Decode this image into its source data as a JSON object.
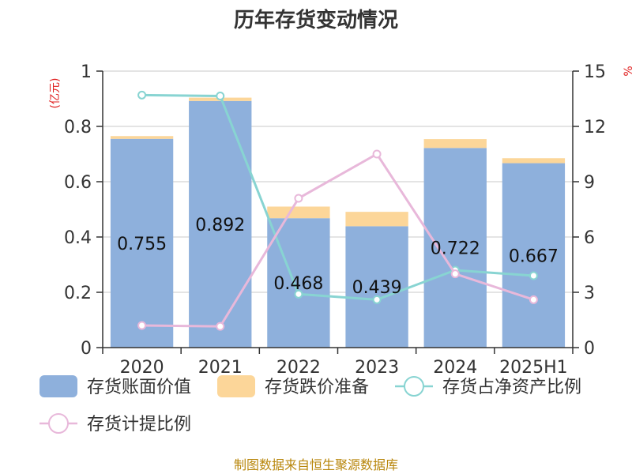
{
  "chart_data": {
    "type": "bar",
    "title": "历年存货变动情况",
    "y_left_unit": "(亿元)",
    "y_right_unit": "%",
    "categories": [
      "2020",
      "2021",
      "2022",
      "2023",
      "2024",
      "2025H1"
    ],
    "ylim_left": [
      0,
      1
    ],
    "yticks_left": [
      "0",
      "0.2",
      "0.4",
      "0.6",
      "0.8",
      "1"
    ],
    "ylim_right": [
      0,
      15
    ],
    "yticks_right": [
      "0",
      "3",
      "6",
      "9",
      "12",
      "15"
    ],
    "grid": true,
    "legend_position": "bottom",
    "bar_series": [
      {
        "name": "存货账面价值",
        "color": "#8eb0dc",
        "values": [
          0.755,
          0.892,
          0.468,
          0.439,
          0.722,
          0.667
        ],
        "labels": [
          "0.755",
          "0.892",
          "0.468",
          "0.439",
          "0.722",
          "0.667"
        ]
      },
      {
        "name": "存货跌价准备",
        "color": "#fcd699",
        "values": [
          0.01,
          0.012,
          0.042,
          0.052,
          0.032,
          0.018
        ]
      }
    ],
    "line_series": [
      {
        "name": "存货占净资产比例",
        "color": "#88d4d2",
        "axis": "right",
        "values": [
          13.7,
          13.65,
          2.9,
          2.6,
          4.2,
          3.9
        ]
      },
      {
        "name": "存货计提比例",
        "color": "#e8b8da",
        "axis": "right",
        "values": [
          1.2,
          1.15,
          8.1,
          10.5,
          4.0,
          2.6
        ]
      }
    ]
  },
  "footer": {
    "source": "制图数据来自恒生聚源数据库"
  }
}
